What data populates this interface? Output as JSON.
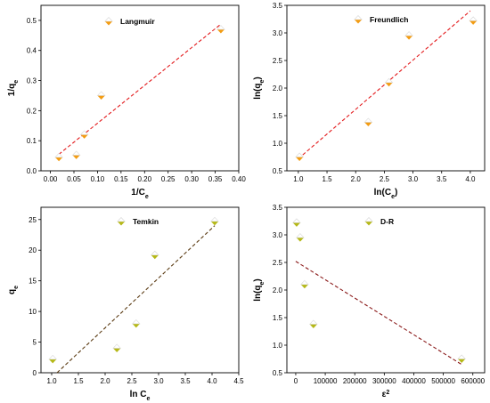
{
  "chart_data": [
    {
      "type": "scatter",
      "id": "langmuir",
      "xlabel": {
        "main": "1/C",
        "sub": "e"
      },
      "ylabel": {
        "main": "1/q",
        "sub": "e"
      },
      "xlim": [
        -0.02,
        0.4
      ],
      "ylim": [
        0,
        0.55
      ],
      "xticks": [
        0.0,
        0.05,
        0.1,
        0.15,
        0.2,
        0.25,
        0.3,
        0.35,
        0.4
      ],
      "xtick_labels": [
        "0.00",
        "0.05",
        "0.10",
        "0.15",
        "0.20",
        "0.25",
        "0.30",
        "0.35",
        "0.40"
      ],
      "yticks": [
        0.0,
        0.1,
        0.2,
        0.3,
        0.4,
        0.5
      ],
      "ytick_labels": [
        "0.0",
        "0.1",
        "0.2",
        "0.3",
        "0.4",
        "0.5"
      ],
      "series": [
        {
          "name": "Langmuir",
          "marker_color": "#f39c12",
          "points": [
            [
              0.018,
              0.045
            ],
            [
              0.055,
              0.052
            ],
            [
              0.072,
              0.12
            ],
            [
              0.108,
              0.25
            ],
            [
              0.362,
              0.47
            ]
          ]
        }
      ],
      "fit_line": {
        "x": [
          0.018,
          0.36
        ],
        "y": [
          0.055,
          0.485
        ],
        "color": "#e31a1c"
      },
      "legend_position": "top-left"
    },
    {
      "type": "scatter",
      "id": "freundlich",
      "xlabel": {
        "main": "ln(C",
        "sub": "e",
        "suffix": ")"
      },
      "ylabel": {
        "main": "ln(q",
        "sub": "e",
        "suffix": ")"
      },
      "xlim": [
        0.8,
        4.25
      ],
      "ylim": [
        0.5,
        3.5
      ],
      "xticks": [
        1.0,
        1.5,
        2.0,
        2.5,
        3.0,
        3.5,
        4.0
      ],
      "xtick_labels": [
        "1.0",
        "1.5",
        "2.0",
        "2.5",
        "3.0",
        "3.5",
        "4.0"
      ],
      "yticks": [
        0.5,
        1.0,
        1.5,
        2.0,
        2.5,
        3.0,
        3.5
      ],
      "ytick_labels": [
        "0.5",
        "1.0",
        "1.5",
        "2.0",
        "2.5",
        "3.0",
        "3.5"
      ],
      "series": [
        {
          "name": "Freundlich",
          "marker_color": "#f39c12",
          "points": [
            [
              1.02,
              0.75
            ],
            [
              2.22,
              1.38
            ],
            [
              2.58,
              2.1
            ],
            [
              2.93,
              2.95
            ],
            [
              4.05,
              3.22
            ]
          ]
        }
      ],
      "fit_line": {
        "x": [
          1.0,
          4.0
        ],
        "y": [
          0.72,
          3.4
        ],
        "color": "#e31a1c"
      },
      "legend_position": "top-left"
    },
    {
      "type": "scatter",
      "id": "temkin",
      "xlabel": {
        "main": "ln C",
        "sub": "e"
      },
      "ylabel": {
        "main": "q",
        "sub": "e"
      },
      "xlim": [
        0.8,
        4.5
      ],
      "ylim": [
        0,
        27
      ],
      "xticks": [
        1.0,
        1.5,
        2.0,
        2.5,
        3.0,
        3.5,
        4.0,
        4.5
      ],
      "xtick_labels": [
        "1.0",
        "1.5",
        "2.0",
        "2.5",
        "3.0",
        "3.5",
        "4.0",
        "4.5"
      ],
      "yticks": [
        0,
        5,
        10,
        15,
        20,
        25
      ],
      "ytick_labels": [
        "0",
        "5",
        "10",
        "15",
        "20",
        "25"
      ],
      "series": [
        {
          "name": "Temkin",
          "marker_color": "#b5b817",
          "points": [
            [
              1.02,
              2.2
            ],
            [
              2.22,
              4.0
            ],
            [
              2.58,
              8.0
            ],
            [
              2.93,
              19.2
            ],
            [
              4.05,
              24.7
            ]
          ]
        }
      ],
      "fit_line": {
        "x": [
          1.1,
          4.05
        ],
        "y": [
          0.0,
          24.0
        ],
        "color": "#5a3a12"
      },
      "legend_position": "top-left"
    },
    {
      "type": "scatter",
      "id": "dr",
      "xlabel": {
        "main": "ε",
        "sup": "2"
      },
      "ylabel": {
        "main": "ln(q",
        "sub": "e",
        "suffix": ")"
      },
      "xlim": [
        -30000,
        640000
      ],
      "ylim": [
        0.5,
        3.5
      ],
      "xticks": [
        0,
        100000,
        200000,
        300000,
        400000,
        500000,
        600000
      ],
      "xtick_labels": [
        "0",
        "100000",
        "200000",
        "300000",
        "400000",
        "500000",
        "600000"
      ],
      "yticks": [
        0.5,
        1.0,
        1.5,
        2.0,
        2.5,
        3.0,
        3.5
      ],
      "ytick_labels": [
        "0.5",
        "1.0",
        "1.5",
        "2.0",
        "2.5",
        "3.0",
        "3.5"
      ],
      "series": [
        {
          "name": "D-R",
          "marker_color": "#b5b817",
          "points": [
            [
              3000,
              3.22
            ],
            [
              15000,
              2.95
            ],
            [
              30000,
              2.1
            ],
            [
              60000,
              1.38
            ],
            [
              562000,
              0.75
            ]
          ]
        }
      ],
      "fit_line": {
        "x": [
          0,
          562000
        ],
        "y": [
          2.52,
          0.65
        ],
        "color": "#8b1a1a"
      },
      "legend_position": "top-right"
    }
  ]
}
